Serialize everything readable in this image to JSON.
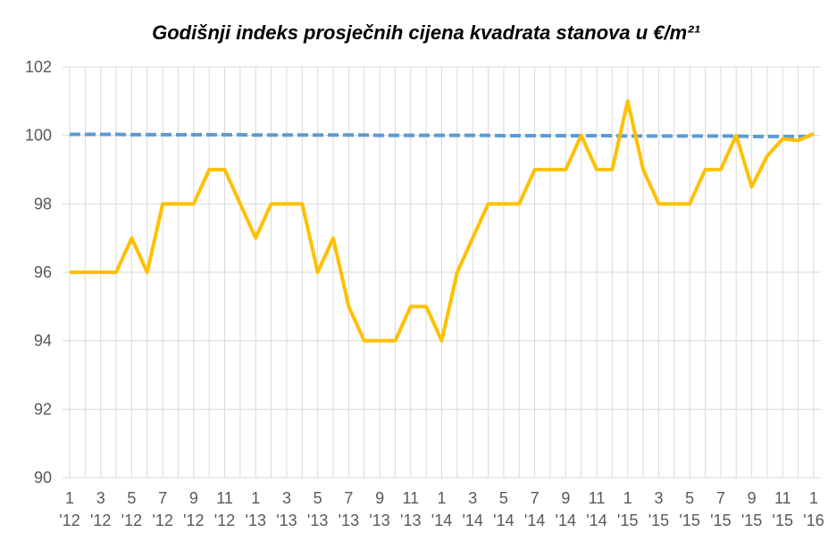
{
  "chart_data": {
    "type": "line",
    "title": "Godišnji indeks prosječnih cijena kvadrata stanova u €/m²¹",
    "categories": [
      "1\n'12",
      null,
      "3\n'12",
      null,
      "5\n'12",
      null,
      "7\n'12",
      null,
      "9\n'12",
      null,
      "11\n'12",
      null,
      "1\n'13",
      null,
      "3\n'13",
      null,
      "5\n'13",
      null,
      "7\n'13",
      null,
      "9\n'13",
      null,
      "11\n'13",
      null,
      "1\n'14",
      null,
      "3\n'14",
      null,
      "5\n'14",
      null,
      "7\n'14",
      null,
      "9\n'14",
      null,
      "11\n'14",
      null,
      "1\n'15",
      null,
      "3\n'15",
      null,
      "5\n'15",
      null,
      "7\n'15",
      null,
      "9\n'15",
      null,
      "11\n'15",
      null,
      "1\n'16"
    ],
    "series": [
      {
        "color": "#5b9bd5",
        "dashed": true,
        "values": [
          100.03,
          100.03,
          100.03,
          100.03,
          100.02,
          100.02,
          100.02,
          100.02,
          100.02,
          100.02,
          100.02,
          100.02,
          100.01,
          100.01,
          100.01,
          100.01,
          100.01,
          100.01,
          100.01,
          100.01,
          100.0,
          100.0,
          100.0,
          100.0,
          100.0,
          100.0,
          100.0,
          100.0,
          99.99,
          99.99,
          99.99,
          99.99,
          99.99,
          99.99,
          99.99,
          99.99,
          99.98,
          99.98,
          99.98,
          99.98,
          99.98,
          99.98,
          99.98,
          99.98,
          99.97,
          99.97,
          99.97,
          99.97,
          99.97
        ]
      },
      {
        "color": "#ffc000",
        "values": [
          96,
          96,
          96,
          96,
          97,
          96,
          98,
          98,
          98,
          99,
          99,
          98,
          97,
          98,
          98,
          98,
          96,
          97,
          95,
          94,
          94,
          94,
          95,
          95,
          94,
          96,
          97,
          98,
          98,
          98,
          99,
          99,
          99,
          100,
          99,
          99,
          101,
          99,
          98,
          98,
          98,
          99,
          99,
          100,
          98.5,
          99.4,
          99.9,
          99.85,
          100.05
        ]
      }
    ],
    "ylim": [
      90,
      102
    ],
    "yticks": [
      90,
      92,
      94,
      96,
      98,
      100,
      102
    ],
    "grid": true
  }
}
